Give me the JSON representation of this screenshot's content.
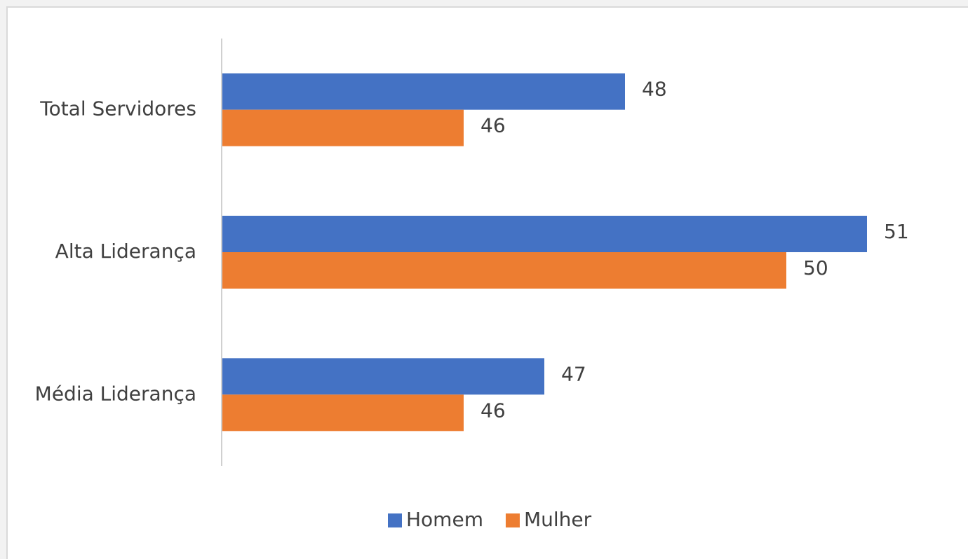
{
  "chart_data": {
    "type": "hbar",
    "categories": [
      "Total Servidores",
      "Alta Liderança",
      "Média Liderança"
    ],
    "series": [
      {
        "name": "Homem",
        "color": "#4472c4",
        "values": [
          48,
          51,
          47
        ]
      },
      {
        "name": "Mulher",
        "color": "#ed7d31",
        "values": [
          46,
          50,
          46
        ]
      }
    ],
    "xlim": [
      43,
      52
    ],
    "legend": "bottom"
  }
}
